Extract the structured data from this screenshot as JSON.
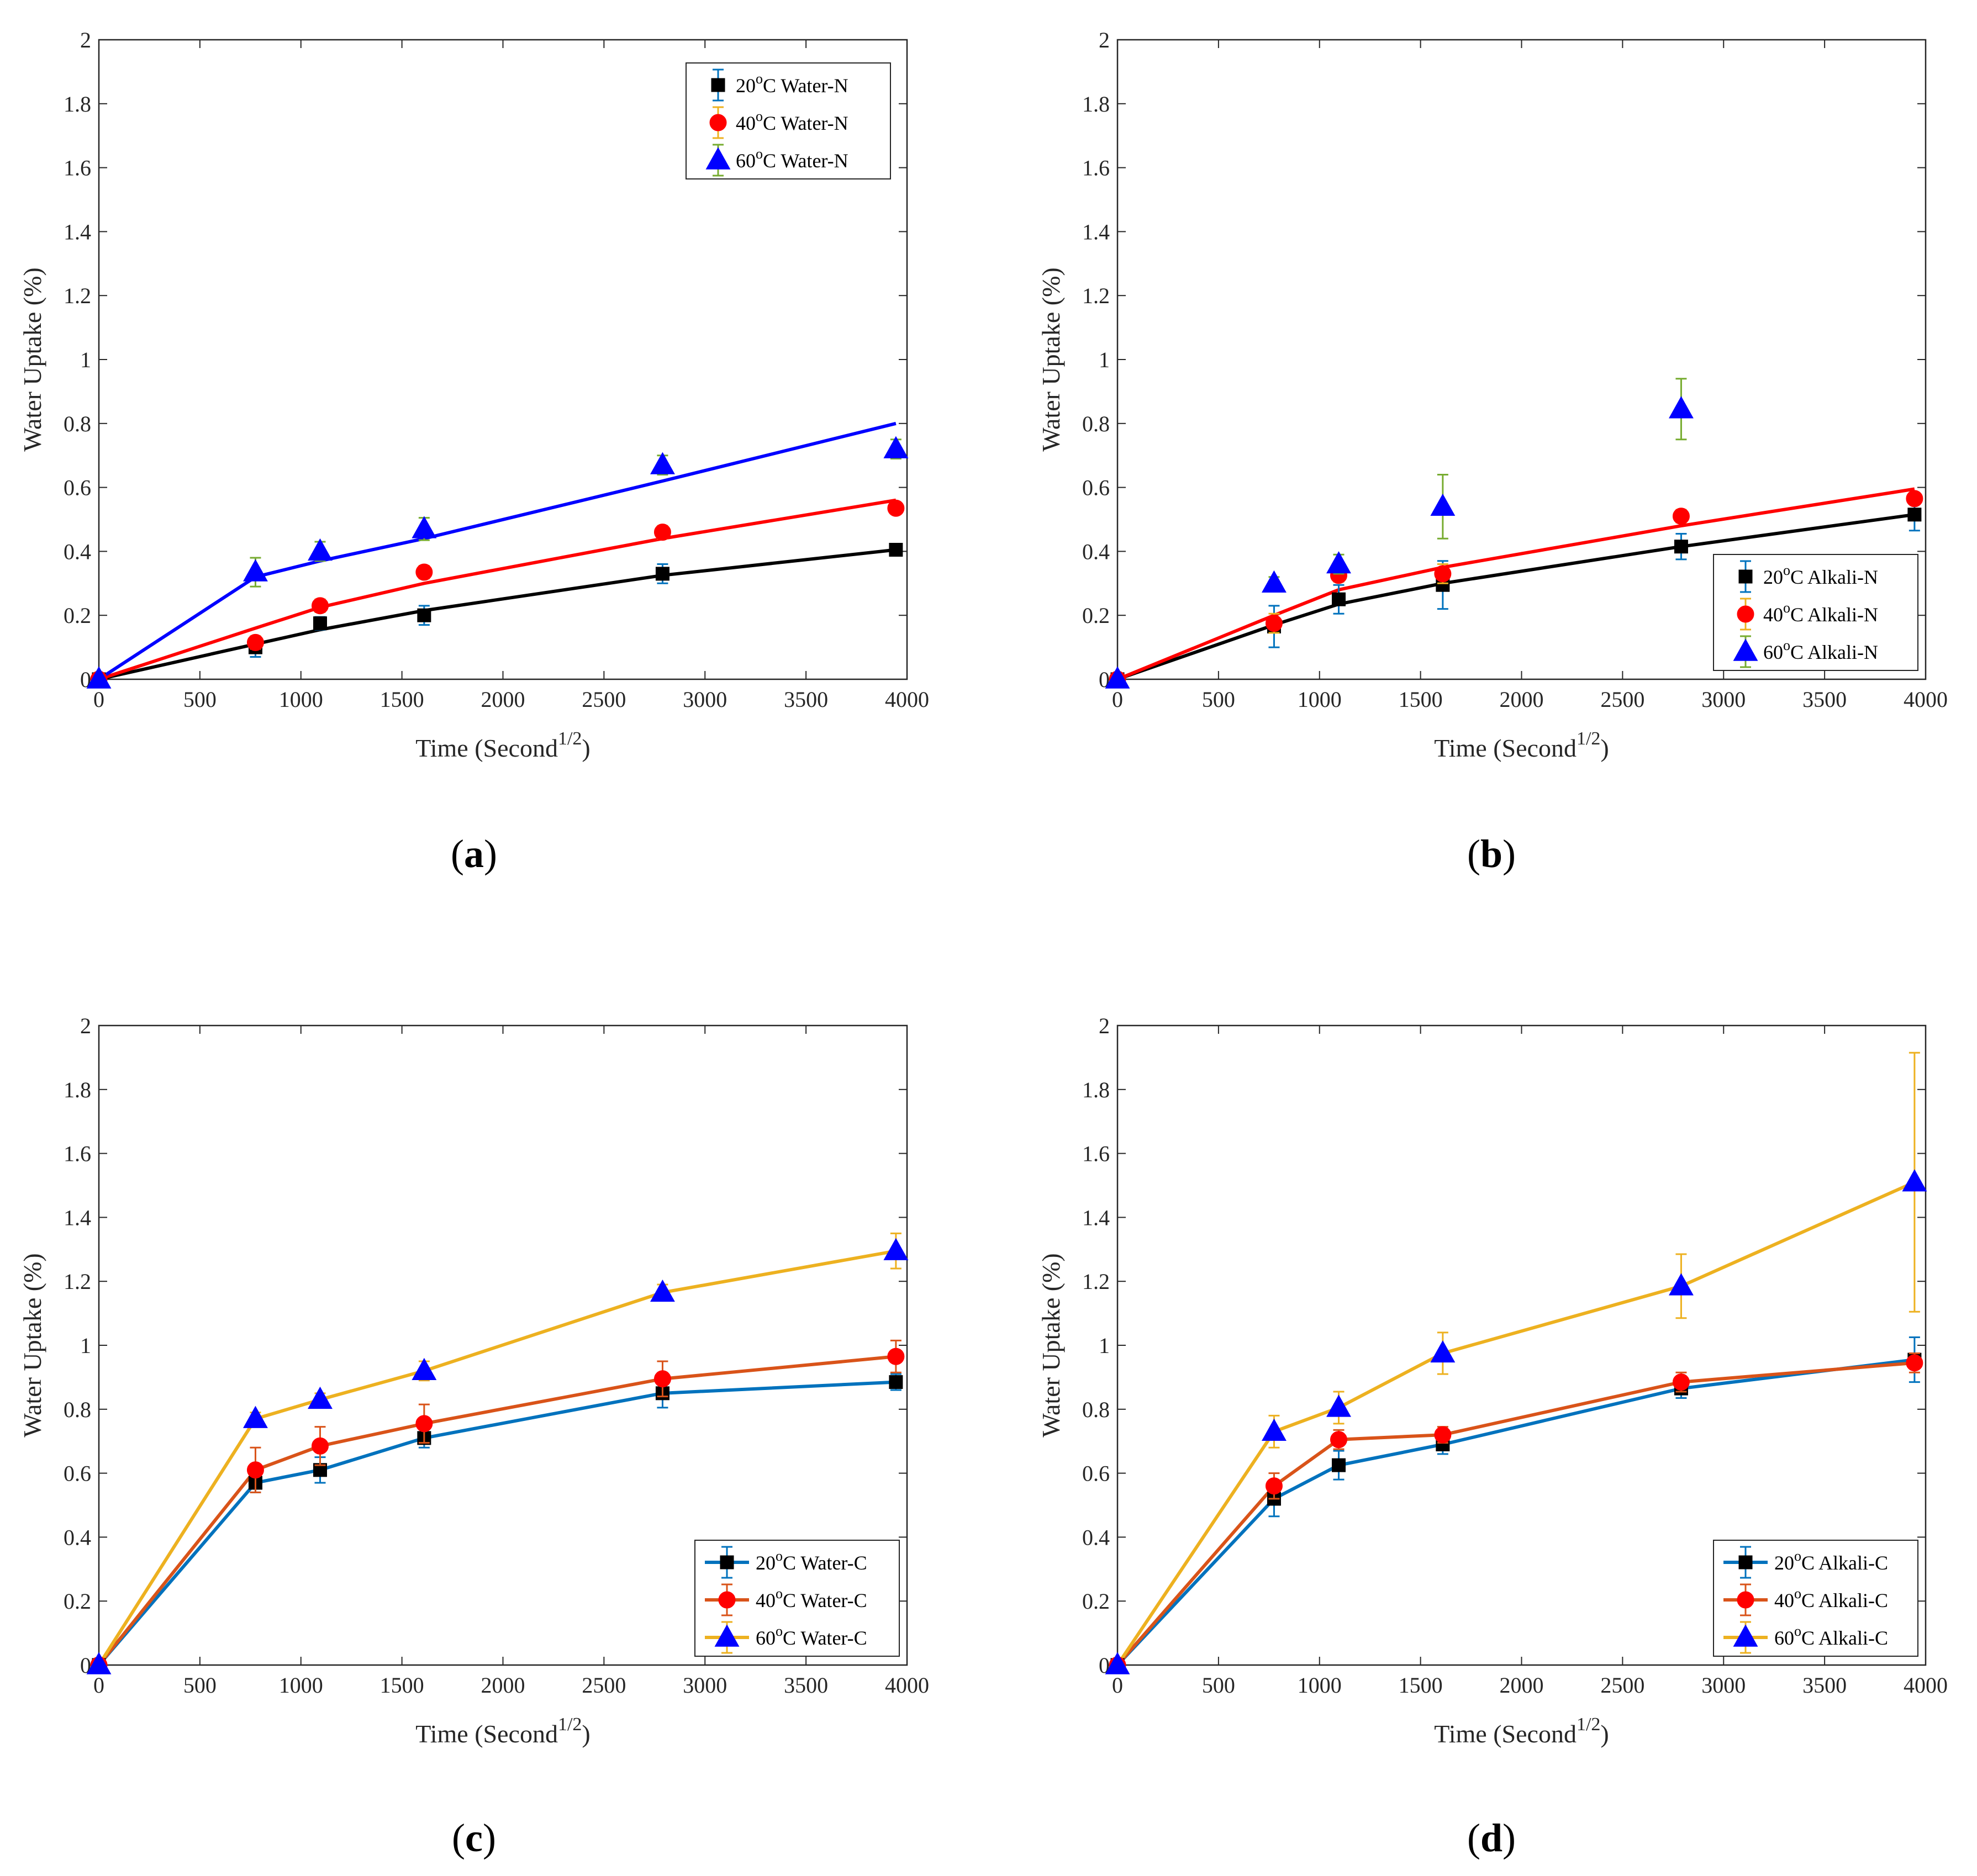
{
  "colors": {
    "black": "#000000",
    "red": "#ff0000",
    "blue": "#0000ff",
    "matlab_blue": "#0072bd",
    "matlab_orange": "#d95319",
    "matlab_yellow": "#edb120",
    "green": "#77ac30",
    "axis": "#262626"
  },
  "chart_data": [
    {
      "id": "a",
      "type": "scatter",
      "panel_label": "a",
      "xlabel": "Time (Second",
      "xlabel_sup": "1/2",
      "xlabel_close": ")",
      "ylabel": "Water Uptake (%)",
      "xlim": [
        0,
        4000
      ],
      "ylim": [
        0,
        2
      ],
      "xticks": [
        "0",
        "500",
        "1000",
        "1500",
        "2000",
        "2500",
        "3000",
        "3500",
        "4000"
      ],
      "yticks": [
        "0",
        "0.2",
        "0.4",
        "0.6",
        "0.8",
        "1",
        "1.2",
        "1.4",
        "1.6",
        "1.8",
        "2"
      ],
      "legend_position": "top-right",
      "series": [
        {
          "name": "20°C Water-N",
          "temp": "20",
          "deg": "o",
          "suffix": "C Water-N",
          "marker": "square",
          "marker_color": "#000000",
          "err_color": "#0072bd",
          "x": [
            0,
            775,
            1095,
            1610,
            2790,
            3945
          ],
          "y": [
            0,
            0.1,
            0.175,
            0.2,
            0.33,
            0.405
          ],
          "err": [
            0.005,
            0.03,
            0.02,
            0.03,
            0.03,
            0.01
          ],
          "fit": {
            "color": "#000000",
            "x": [
              0,
              775,
              1095,
              1610,
              2790,
              3945
            ],
            "y": [
              0,
              0.11,
              0.155,
              0.215,
              0.325,
              0.405
            ]
          }
        },
        {
          "name": "40°C Water-N",
          "temp": "40",
          "deg": "o",
          "suffix": "C Water-N",
          "marker": "circle",
          "marker_color": "#ff0000",
          "err_color": "#edb120",
          "x": [
            0,
            775,
            1095,
            1610,
            2790,
            3945
          ],
          "y": [
            0,
            0.115,
            0.23,
            0.335,
            0.46,
            0.535
          ],
          "err": [
            0.005,
            0.02,
            0.02,
            0.02,
            0.02,
            0.01
          ],
          "fit": {
            "color": "#ff0000",
            "x": [
              0,
              775,
              1095,
              1610,
              2790,
              3945
            ],
            "y": [
              0,
              0.16,
              0.225,
              0.3,
              0.44,
              0.56
            ]
          }
        },
        {
          "name": "60°C Water-N",
          "temp": "60",
          "deg": "o",
          "suffix": "C Water-N",
          "marker": "triangle",
          "marker_color": "#0000ff",
          "err_color": "#77ac30",
          "x": [
            0,
            775,
            1095,
            1610,
            2790,
            3945
          ],
          "y": [
            0,
            0.335,
            0.4,
            0.47,
            0.67,
            0.72
          ],
          "err": [
            0.005,
            0.045,
            0.03,
            0.035,
            0.03,
            0.03
          ],
          "fit": {
            "color": "#0000ff",
            "x": [
              0,
              775,
              1095,
              1610,
              2790,
              3945
            ],
            "y": [
              0,
              0.32,
              0.37,
              0.44,
              0.62,
              0.8
            ]
          }
        }
      ]
    },
    {
      "id": "b",
      "type": "scatter",
      "panel_label": "b",
      "xlabel": "Time (Second",
      "xlabel_sup": "1/2",
      "xlabel_close": ")",
      "ylabel": "Water Uptake (%)",
      "xlim": [
        0,
        4000
      ],
      "ylim": [
        0,
        2
      ],
      "xticks": [
        "0",
        "500",
        "1000",
        "1500",
        "2000",
        "2500",
        "3000",
        "3500",
        "4000"
      ],
      "yticks": [
        "0",
        "0.2",
        "0.4",
        "0.6",
        "0.8",
        "1",
        "1.2",
        "1.4",
        "1.6",
        "1.8",
        "2"
      ],
      "legend_position": "bottom-right",
      "series": [
        {
          "name": "20°C Alkali-N",
          "temp": "20",
          "deg": "o",
          "suffix": "C Alkali-N",
          "marker": "square",
          "marker_color": "#000000",
          "err_color": "#0072bd",
          "x": [
            0,
            775,
            1095,
            1610,
            2790,
            3945
          ],
          "y": [
            0,
            0.165,
            0.25,
            0.295,
            0.415,
            0.515
          ],
          "err": [
            0.005,
            0.065,
            0.045,
            0.075,
            0.04,
            0.05
          ],
          "fit": {
            "color": "#000000",
            "x": [
              0,
              775,
              1095,
              1610,
              2790,
              3945
            ],
            "y": [
              0,
              0.17,
              0.235,
              0.3,
              0.415,
              0.515
            ]
          }
        },
        {
          "name": "40°C Alkali-N",
          "temp": "40",
          "deg": "o",
          "suffix": "C Alkali-N",
          "marker": "circle",
          "marker_color": "#ff0000",
          "err_color": "#edb120",
          "x": [
            0,
            775,
            1095,
            1610,
            2790,
            3945
          ],
          "y": [
            0,
            0.175,
            0.325,
            0.33,
            0.51,
            0.565
          ],
          "err": [
            0.005,
            0.03,
            0.02,
            0.03,
            0.02,
            0.015
          ],
          "fit": {
            "color": "#ff0000",
            "x": [
              0,
              775,
              1095,
              1610,
              2790,
              3945
            ],
            "y": [
              0,
              0.2,
              0.28,
              0.35,
              0.48,
              0.595
            ]
          }
        },
        {
          "name": "60°C Alkali-N",
          "temp": "60",
          "deg": "o",
          "suffix": "C Alkali-N",
          "marker": "triangle",
          "marker_color": "#0000ff",
          "err_color": "#77ac30",
          "x": [
            0,
            775,
            1095,
            1610,
            2790
          ],
          "y": [
            0,
            0.3,
            0.36,
            0.54,
            0.845
          ],
          "err": [
            0.005,
            0.02,
            0.03,
            0.1,
            0.095
          ],
          "fit": null
        }
      ]
    },
    {
      "id": "c",
      "type": "line",
      "panel_label": "c",
      "xlabel": "Time (Second",
      "xlabel_sup": "1/2",
      "xlabel_close": ")",
      "ylabel": "Water Uptake (%)",
      "xlim": [
        0,
        4000
      ],
      "ylim": [
        0,
        2
      ],
      "xticks": [
        "0",
        "500",
        "1000",
        "1500",
        "2000",
        "2500",
        "3000",
        "3500",
        "4000"
      ],
      "yticks": [
        "0",
        "0.2",
        "0.4",
        "0.6",
        "0.8",
        "1",
        "1.2",
        "1.4",
        "1.6",
        "1.8",
        "2"
      ],
      "legend_position": "bottom-right",
      "series": [
        {
          "name": "20°C Water-C",
          "temp": "20",
          "deg": "o",
          "suffix": "C Water-C",
          "marker": "square",
          "marker_color": "#000000",
          "err_color": "#0072bd",
          "line_color": "#0072bd",
          "x": [
            0,
            775,
            1095,
            1610,
            2790,
            3945
          ],
          "y": [
            0,
            0.57,
            0.61,
            0.71,
            0.85,
            0.885
          ],
          "err": [
            0.005,
            0.03,
            0.04,
            0.03,
            0.045,
            0.025
          ]
        },
        {
          "name": "40°C Water-C",
          "temp": "40",
          "deg": "o",
          "suffix": "C Water-C",
          "marker": "circle",
          "marker_color": "#ff0000",
          "err_color": "#d95319",
          "line_color": "#d95319",
          "x": [
            0,
            775,
            1095,
            1610,
            2790,
            3945
          ],
          "y": [
            0,
            0.61,
            0.685,
            0.755,
            0.895,
            0.965
          ],
          "err": [
            0.005,
            0.07,
            0.06,
            0.06,
            0.055,
            0.05
          ]
        },
        {
          "name": "60°C Water-C",
          "temp": "60",
          "deg": "o",
          "suffix": "C Water-C",
          "marker": "triangle",
          "marker_color": "#0000ff",
          "err_color": "#edb120",
          "line_color": "#edb120",
          "x": [
            0,
            775,
            1095,
            1610,
            2790,
            3945
          ],
          "y": [
            0,
            0.77,
            0.83,
            0.92,
            1.165,
            1.295
          ],
          "err": [
            0.005,
            0.02,
            0.02,
            0.03,
            0.025,
            0.055
          ]
        }
      ]
    },
    {
      "id": "d",
      "type": "line",
      "panel_label": "d",
      "xlabel": "Time (Second",
      "xlabel_sup": "1/2",
      "xlabel_close": ")",
      "ylabel": "Water Uptake (%)",
      "xlim": [
        0,
        4000
      ],
      "ylim": [
        0,
        2
      ],
      "xticks": [
        "0",
        "500",
        "1000",
        "1500",
        "2000",
        "2500",
        "3000",
        "3500",
        "4000"
      ],
      "yticks": [
        "0",
        "0.2",
        "0.4",
        "0.6",
        "0.8",
        "1",
        "1.2",
        "1.4",
        "1.6",
        "1.8",
        "2"
      ],
      "legend_position": "bottom-right",
      "series": [
        {
          "name": "20°C Alkali-C",
          "temp": "20",
          "deg": "o",
          "suffix": "C Alkali-C",
          "marker": "square",
          "marker_color": "#000000",
          "err_color": "#0072bd",
          "line_color": "#0072bd",
          "x": [
            0,
            775,
            1095,
            1610,
            2790,
            3945
          ],
          "y": [
            0,
            0.52,
            0.625,
            0.69,
            0.865,
            0.955
          ],
          "err": [
            0.005,
            0.055,
            0.045,
            0.03,
            0.03,
            0.07
          ]
        },
        {
          "name": "40°C Alkali-C",
          "temp": "40",
          "deg": "o",
          "suffix": "C Alkali-C",
          "marker": "circle",
          "marker_color": "#ff0000",
          "err_color": "#d95319",
          "line_color": "#d95319",
          "x": [
            0,
            775,
            1095,
            1610,
            2790,
            3945
          ],
          "y": [
            0,
            0.56,
            0.705,
            0.72,
            0.885,
            0.945
          ],
          "err": [
            0.005,
            0.04,
            0.03,
            0.025,
            0.03,
            0.03
          ]
        },
        {
          "name": "60°C Alkali-C",
          "temp": "60",
          "deg": "o",
          "suffix": "C Alkali-C",
          "marker": "triangle",
          "marker_color": "#0000ff",
          "err_color": "#edb120",
          "line_color": "#edb120",
          "x": [
            0,
            775,
            1095,
            1610,
            2790,
            3945
          ],
          "y": [
            0,
            0.73,
            0.805,
            0.975,
            1.185,
            1.51
          ],
          "err": [
            0.005,
            0.05,
            0.05,
            0.065,
            0.1,
            0.405
          ]
        }
      ]
    }
  ]
}
